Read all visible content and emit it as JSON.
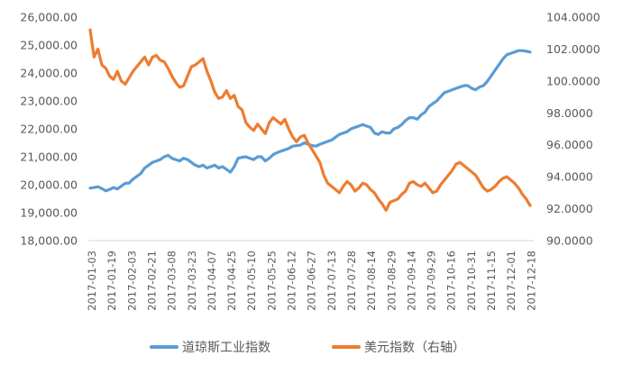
{
  "chart_data": {
    "type": "line",
    "title": "",
    "xlabel": "",
    "x_tick_labels": [
      "2017-01-03",
      "2017-01-19",
      "2017-02-03",
      "2017-02-21",
      "2017-03-08",
      "2017-03-23",
      "2017-04-07",
      "2017-04-25",
      "2017-05-10",
      "2017-05-25",
      "2017-06-12",
      "2017-06-27",
      "2017-07-13",
      "2017-07-28",
      "2017-08-14",
      "2017-08-29",
      "2017-09-14",
      "2017-09-29",
      "2017-10-16",
      "2017-10-31",
      "2017-11-15",
      "2017-12-01",
      "2017-12-18"
    ],
    "left_axis": {
      "ylim": [
        18000,
        26000
      ],
      "ticks": [
        18000,
        19000,
        20000,
        21000,
        22000,
        23000,
        24000,
        25000,
        26000
      ],
      "tick_labels": [
        "18,000.00",
        "19,000.00",
        "20,000.00",
        "21,000.00",
        "22,000.00",
        "23,000.00",
        "24,000.00",
        "25,000.00",
        "26,000.00"
      ]
    },
    "right_axis": {
      "ylim": [
        90,
        104
      ],
      "ticks": [
        90,
        92,
        94,
        96,
        98,
        100,
        102,
        104
      ],
      "tick_labels": [
        "90.0000",
        "92.0000",
        "94.0000",
        "96.0000",
        "98.0000",
        "100.0000",
        "102.0000",
        "104.0000"
      ]
    },
    "legend_position": "bottom",
    "grid": false,
    "series": [
      {
        "name": "道琼斯工业指数",
        "axis": "left",
        "color": "#5B9BD5",
        "values": [
          19880,
          19900,
          19930,
          19860,
          19780,
          19830,
          19900,
          19850,
          19950,
          20050,
          20060,
          20200,
          20300,
          20400,
          20600,
          20700,
          20800,
          20850,
          20900,
          21000,
          21050,
          20950,
          20900,
          20850,
          20950,
          20900,
          20800,
          20700,
          20650,
          20700,
          20600,
          20650,
          20700,
          20600,
          20650,
          20550,
          20450,
          20650,
          20950,
          20980,
          21000,
          20950,
          20900,
          21000,
          21000,
          20850,
          20950,
          21080,
          21150,
          21200,
          21250,
          21300,
          21380,
          21400,
          21420,
          21500,
          21450,
          21400,
          21380,
          21450,
          21500,
          21550,
          21600,
          21700,
          21800,
          21850,
          21900,
          22000,
          22050,
          22100,
          22150,
          22100,
          22050,
          21850,
          21800,
          21900,
          21850,
          21850,
          22000,
          22050,
          22150,
          22300,
          22400,
          22400,
          22350,
          22500,
          22600,
          22800,
          22900,
          23000,
          23150,
          23300,
          23350,
          23400,
          23450,
          23500,
          23550,
          23550,
          23450,
          23400,
          23500,
          23550,
          23700,
          23900,
          24100,
          24300,
          24500,
          24650,
          24700,
          24750,
          24800,
          24800,
          24780,
          24750
        ]
      },
      {
        "name": "美元指数（右轴）",
        "axis": "right",
        "color": "#ED7D31",
        "values": [
          103.2,
          101.5,
          102.0,
          101.0,
          100.8,
          100.3,
          100.1,
          100.6,
          100.0,
          99.8,
          100.2,
          100.6,
          100.9,
          101.2,
          101.5,
          101.0,
          101.5,
          101.6,
          101.3,
          101.2,
          100.8,
          100.3,
          99.9,
          99.6,
          99.7,
          100.3,
          100.9,
          101.0,
          101.2,
          101.4,
          100.6,
          100.0,
          99.3,
          98.9,
          99.0,
          99.4,
          98.9,
          99.1,
          98.4,
          98.2,
          97.4,
          97.1,
          96.9,
          97.3,
          97.0,
          96.7,
          97.4,
          97.7,
          97.5,
          97.3,
          97.6,
          97.0,
          96.5,
          96.2,
          96.5,
          96.6,
          96.1,
          95.7,
          95.3,
          94.9,
          94.1,
          93.6,
          93.4,
          93.2,
          93.0,
          93.4,
          93.7,
          93.5,
          93.1,
          93.3,
          93.6,
          93.5,
          93.2,
          93.0,
          92.6,
          92.3,
          91.9,
          92.4,
          92.5,
          92.6,
          92.9,
          93.1,
          93.6,
          93.7,
          93.5,
          93.4,
          93.6,
          93.3,
          93.0,
          93.1,
          93.5,
          93.8,
          94.1,
          94.4,
          94.8,
          94.9,
          94.7,
          94.5,
          94.3,
          94.1,
          93.7,
          93.3,
          93.1,
          93.2,
          93.4,
          93.7,
          93.9,
          94.0,
          93.8,
          93.6,
          93.3,
          92.9,
          92.6,
          92.2
        ]
      }
    ]
  }
}
